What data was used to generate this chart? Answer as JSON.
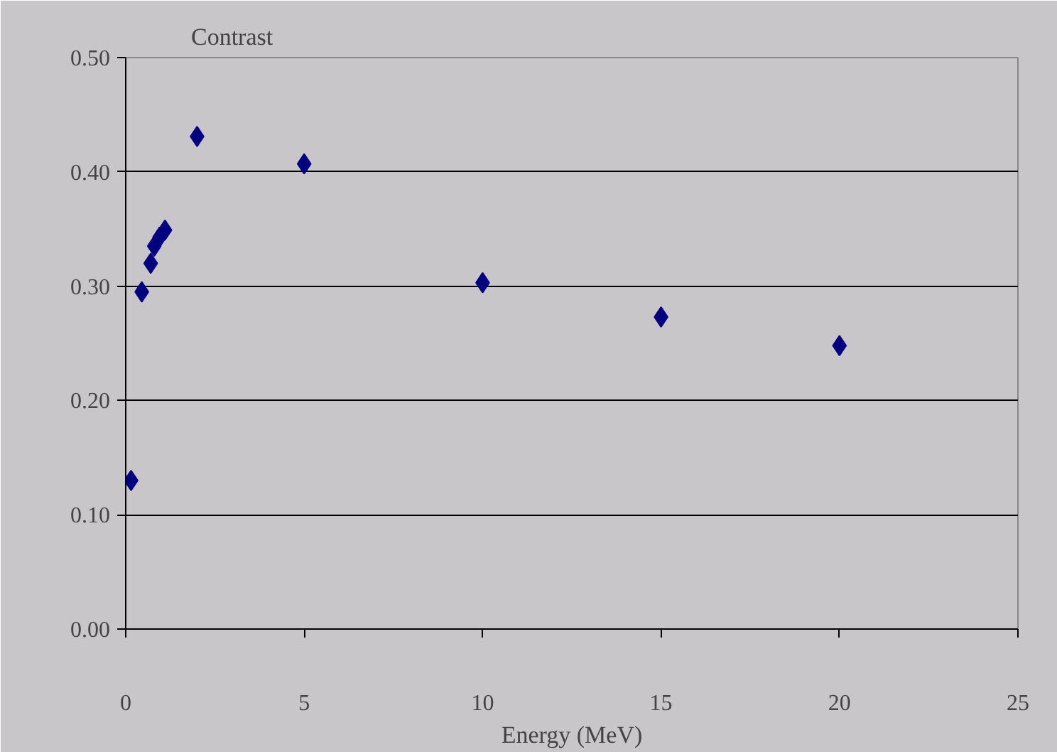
{
  "chart_data": {
    "type": "scatter",
    "ylabel": "Contrast",
    "xlabel": "Energy (MeV)",
    "x": [
      0.15,
      0.45,
      0.7,
      0.8,
      0.95,
      1.1,
      2,
      5,
      10,
      15,
      20
    ],
    "series": [
      {
        "color": "#000080",
        "values": [
          0.13,
          0.295,
          0.32,
          0.335,
          0.343,
          0.349,
          0.431,
          0.407,
          0.303,
          0.273,
          0.248
        ]
      }
    ],
    "xlim": [
      0,
      25
    ],
    "xticks": [
      0,
      5,
      10,
      15,
      20,
      25
    ],
    "ylim": [
      0,
      0.5
    ],
    "yticks": [
      {
        "value": 0,
        "label": "0.00"
      },
      {
        "value": 0.1,
        "label": "0.10"
      },
      {
        "value": 0.2,
        "label": "0.20"
      },
      {
        "value": 0.3,
        "label": "0.30"
      },
      {
        "value": 0.4,
        "label": "0.40"
      },
      {
        "value": 0.5,
        "label": "0.50"
      }
    ],
    "grid": "y",
    "marker": "diamond"
  }
}
